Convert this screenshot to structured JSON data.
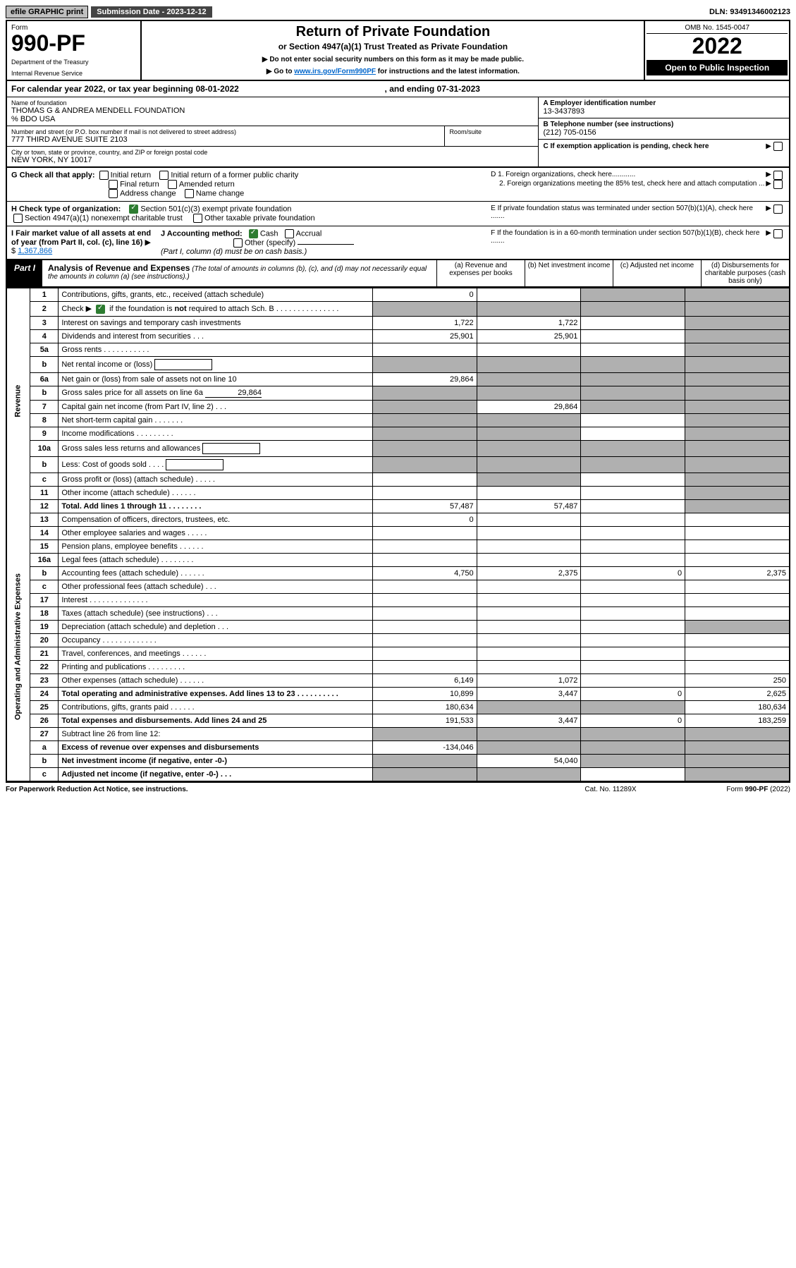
{
  "top": {
    "efile": "efile GRAPHIC print",
    "sub_label": "Submission Date - 2023-12-12",
    "dln": "DLN: 93491346002123"
  },
  "header": {
    "form_word": "Form",
    "form_num": "990-PF",
    "dept": "Department of the Treasury",
    "irs": "Internal Revenue Service",
    "title": "Return of Private Foundation",
    "subtitle": "or Section 4947(a)(1) Trust Treated as Private Foundation",
    "note1": "▶ Do not enter social security numbers on this form as it may be made public.",
    "note2_pre": "▶ Go to ",
    "note2_link": "www.irs.gov/Form990PF",
    "note2_post": " for instructions and the latest information.",
    "omb": "OMB No. 1545-0047",
    "year": "2022",
    "open": "Open to Public Inspection"
  },
  "calendar": {
    "text_pre": "For calendar year 2022, or tax year beginning ",
    "begin": "08-01-2022",
    "text_mid": " , and ending ",
    "end": "07-31-2023"
  },
  "info": {
    "name_label": "Name of foundation",
    "name": "THOMAS G & ANDREA MENDELL FOUNDATION",
    "care_of": "% BDO USA",
    "addr_label": "Number and street (or P.O. box number if mail is not delivered to street address)",
    "addr": "777 THIRD AVENUE SUITE 2103",
    "room_label": "Room/suite",
    "city_label": "City or town, state or province, country, and ZIP or foreign postal code",
    "city": "NEW YORK, NY  10017",
    "A_label": "A Employer identification number",
    "A_val": "13-3437893",
    "B_label": "B Telephone number (see instructions)",
    "B_val": "(212) 705-0156",
    "C_label": "C If exemption application is pending, check here",
    "D1": "D 1. Foreign organizations, check here............",
    "D2": "2. Foreign organizations meeting the 85% test, check here and attach computation ...",
    "E": "E  If private foundation status was terminated under section 507(b)(1)(A), check here .......",
    "F": "F  If the foundation is in a 60-month termination under section 507(b)(1)(B), check here .......",
    "G_label": "G Check all that apply:",
    "G_opts": [
      "Initial return",
      "Initial return of a former public charity",
      "Final return",
      "Amended return",
      "Address change",
      "Name change"
    ],
    "H_label": "H Check type of organization:",
    "H_opt1": "Section 501(c)(3) exempt private foundation",
    "H_opt2": "Section 4947(a)(1) nonexempt charitable trust",
    "H_opt3": "Other taxable private foundation",
    "I_label": "I Fair market value of all assets at end of year (from Part II, col. (c), line 16)",
    "I_val": "1,367,866",
    "J_label": "J Accounting method:",
    "J_cash": "Cash",
    "J_accrual": "Accrual",
    "J_other": "Other (specify)",
    "J_note": "(Part I, column (d) must be on cash basis.)"
  },
  "part1": {
    "label": "Part I",
    "title": "Analysis of Revenue and Expenses",
    "note": " (The total of amounts in columns (b), (c), and (d) may not necessarily equal the amounts in column (a) (see instructions).)",
    "col_a": "(a)  Revenue and expenses per books",
    "col_b": "(b)  Net investment income",
    "col_c": "(c)  Adjusted net income",
    "col_d": "(d)  Disbursements for charitable purposes (cash basis only)",
    "revenue_label": "Revenue",
    "expenses_label": "Operating and Administrative Expenses"
  },
  "lines": [
    {
      "n": "1",
      "desc": "Contributions, gifts, grants, etc., received (attach schedule)",
      "a": "0",
      "b": "",
      "c": "s",
      "d": "s"
    },
    {
      "n": "2",
      "desc": "Check ▶  ☑  if the foundation is not required to attach Sch. B    .   .   .   .   .   .   .   .   .   .   .   .   .   .   .",
      "a": "s",
      "b": "s",
      "c": "s",
      "d": "s",
      "checked": true
    },
    {
      "n": "3",
      "desc": "Interest on savings and temporary cash investments",
      "a": "1,722",
      "b": "1,722",
      "c": "",
      "d": "s"
    },
    {
      "n": "4",
      "desc": "Dividends and interest from securities    .   .   .",
      "a": "25,901",
      "b": "25,901",
      "c": "",
      "d": "s"
    },
    {
      "n": "5a",
      "desc": "Gross rents    .   .   .   .   .   .   .   .   .   .   .",
      "a": "",
      "b": "",
      "c": "",
      "d": "s"
    },
    {
      "n": "b",
      "desc": "Net rental income or (loss)",
      "a": "s",
      "b": "s",
      "c": "s",
      "d": "s",
      "inline_box": true
    },
    {
      "n": "6a",
      "desc": "Net gain or (loss) from sale of assets not on line 10",
      "a": "29,864",
      "b": "s",
      "c": "s",
      "d": "s"
    },
    {
      "n": "b",
      "desc": "Gross sales price for all assets on line 6a",
      "a": "s",
      "b": "s",
      "c": "s",
      "d": "s",
      "inline_val": "29,864"
    },
    {
      "n": "7",
      "desc": "Capital gain net income (from Part IV, line 2)   .   .   .",
      "a": "s",
      "b": "29,864",
      "c": "s",
      "d": "s"
    },
    {
      "n": "8",
      "desc": "Net short-term capital gain   .   .   .   .   .   .   .",
      "a": "s",
      "b": "s",
      "c": "",
      "d": "s"
    },
    {
      "n": "9",
      "desc": "Income modifications  .   .   .   .   .   .   .   .   .",
      "a": "s",
      "b": "s",
      "c": "",
      "d": "s"
    },
    {
      "n": "10a",
      "desc": "Gross sales less returns and allowances",
      "a": "s",
      "b": "s",
      "c": "s",
      "d": "s",
      "inline_box": true
    },
    {
      "n": "b",
      "desc": "Less: Cost of goods sold    .   .   .   .",
      "a": "s",
      "b": "s",
      "c": "s",
      "d": "s",
      "inline_box": true
    },
    {
      "n": "c",
      "desc": "Gross profit or (loss) (attach schedule)    .   .   .   .   .",
      "a": "",
      "b": "s",
      "c": "",
      "d": "s"
    },
    {
      "n": "11",
      "desc": "Other income (attach schedule)    .   .   .   .   .   .",
      "a": "",
      "b": "",
      "c": "",
      "d": "s"
    },
    {
      "n": "12",
      "desc": "Total. Add lines 1 through 11   .   .   .   .   .   .   .   .",
      "a": "57,487",
      "b": "57,487",
      "c": "",
      "d": "s",
      "bold": true
    },
    {
      "n": "13",
      "desc": "Compensation of officers, directors, trustees, etc.",
      "a": "0",
      "b": "",
      "c": "",
      "d": ""
    },
    {
      "n": "14",
      "desc": "Other employee salaries and wages    .   .   .   .   .",
      "a": "",
      "b": "",
      "c": "",
      "d": ""
    },
    {
      "n": "15",
      "desc": "Pension plans, employee benefits  .   .   .   .   .   .",
      "a": "",
      "b": "",
      "c": "",
      "d": ""
    },
    {
      "n": "16a",
      "desc": "Legal fees (attach schedule)  .   .   .   .   .   .   .   .",
      "a": "",
      "b": "",
      "c": "",
      "d": ""
    },
    {
      "n": "b",
      "desc": "Accounting fees (attach schedule)  .   .   .   .   .   .",
      "a": "4,750",
      "b": "2,375",
      "c": "0",
      "d": "2,375"
    },
    {
      "n": "c",
      "desc": "Other professional fees (attach schedule)    .   .   .",
      "a": "",
      "b": "",
      "c": "",
      "d": ""
    },
    {
      "n": "17",
      "desc": "Interest  .   .   .   .   .   .   .   .   .   .   .   .   .   .",
      "a": "",
      "b": "",
      "c": "",
      "d": ""
    },
    {
      "n": "18",
      "desc": "Taxes (attach schedule) (see instructions)    .   .   .",
      "a": "",
      "b": "",
      "c": "",
      "d": ""
    },
    {
      "n": "19",
      "desc": "Depreciation (attach schedule) and depletion   .   .   .",
      "a": "",
      "b": "",
      "c": "",
      "d": "s"
    },
    {
      "n": "20",
      "desc": "Occupancy  .   .   .   .   .   .   .   .   .   .   .   .   .",
      "a": "",
      "b": "",
      "c": "",
      "d": ""
    },
    {
      "n": "21",
      "desc": "Travel, conferences, and meetings  .   .   .   .   .   .",
      "a": "",
      "b": "",
      "c": "",
      "d": ""
    },
    {
      "n": "22",
      "desc": "Printing and publications  .   .   .   .   .   .   .   .   .",
      "a": "",
      "b": "",
      "c": "",
      "d": ""
    },
    {
      "n": "23",
      "desc": "Other expenses (attach schedule)  .   .   .   .   .   .",
      "a": "6,149",
      "b": "1,072",
      "c": "",
      "d": "250"
    },
    {
      "n": "24",
      "desc": "Total operating and administrative expenses. Add lines 13 to 23   .   .   .   .   .   .   .   .   .   .",
      "a": "10,899",
      "b": "3,447",
      "c": "0",
      "d": "2,625",
      "bold": true
    },
    {
      "n": "25",
      "desc": "Contributions, gifts, grants paid    .   .   .   .   .   .",
      "a": "180,634",
      "b": "s",
      "c": "s",
      "d": "180,634"
    },
    {
      "n": "26",
      "desc": "Total expenses and disbursements. Add lines 24 and 25",
      "a": "191,533",
      "b": "3,447",
      "c": "0",
      "d": "183,259",
      "bold": true
    },
    {
      "n": "27",
      "desc": "Subtract line 26 from line 12:",
      "a": "s",
      "b": "s",
      "c": "s",
      "d": "s"
    },
    {
      "n": "a",
      "desc": "Excess of revenue over expenses and disbursements",
      "a": "-134,046",
      "b": "s",
      "c": "s",
      "d": "s",
      "bold": true
    },
    {
      "n": "b",
      "desc": "Net investment income (if negative, enter -0-)",
      "a": "s",
      "b": "54,040",
      "c": "s",
      "d": "s",
      "bold": true
    },
    {
      "n": "c",
      "desc": "Adjusted net income (if negative, enter -0-)   .   .   .",
      "a": "s",
      "b": "s",
      "c": "",
      "d": "s",
      "bold": true
    }
  ],
  "footer": {
    "left": "For Paperwork Reduction Act Notice, see instructions.",
    "mid": "Cat. No. 11289X",
    "right": "Form 990-PF (2022)"
  }
}
